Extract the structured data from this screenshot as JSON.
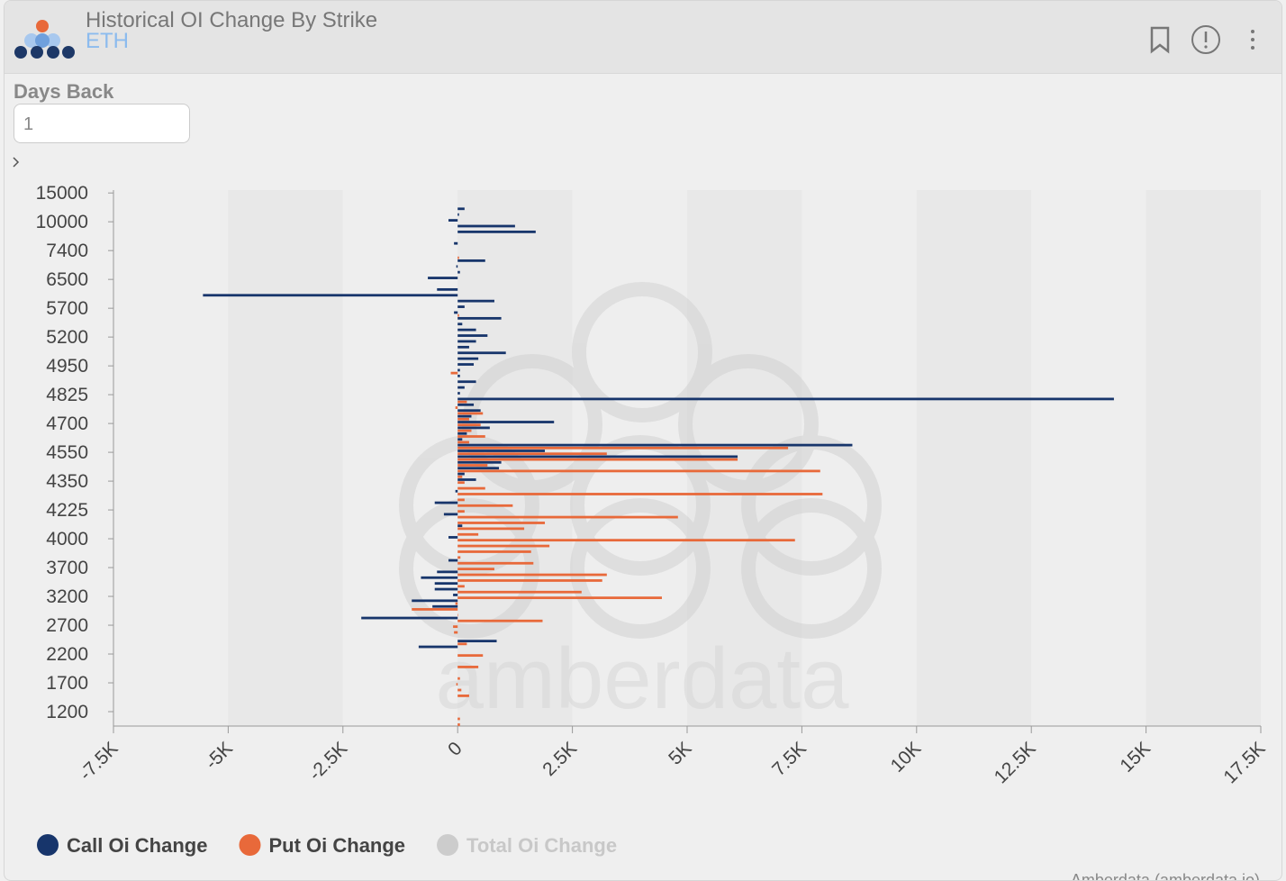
{
  "header": {
    "title": "Historical OI Change By Strike",
    "subtitle": "ETH"
  },
  "controls": {
    "days_back_label": "Days Back",
    "days_back_value": "1"
  },
  "chart_data": {
    "type": "hbar",
    "categories": [
      "15000",
      null,
      null,
      null,
      null,
      "10000",
      null,
      null,
      null,
      null,
      "7400",
      null,
      null,
      null,
      null,
      "6500",
      null,
      null,
      null,
      null,
      "5700",
      null,
      null,
      null,
      null,
      "5200",
      null,
      null,
      null,
      null,
      "4950",
      null,
      null,
      null,
      null,
      "4825",
      null,
      null,
      null,
      null,
      "4700",
      null,
      null,
      null,
      null,
      "4550",
      null,
      null,
      null,
      null,
      "4350",
      null,
      null,
      null,
      null,
      "4225",
      null,
      null,
      null,
      null,
      "4000",
      null,
      null,
      null,
      null,
      "3700",
      null,
      null,
      null,
      null,
      "3200",
      null,
      null,
      null,
      null,
      "2700",
      null,
      null,
      null,
      null,
      "2200",
      null,
      null,
      null,
      null,
      "1700",
      null,
      null,
      null,
      null,
      "1200",
      null,
      null
    ],
    "series": [
      {
        "name": "Call Oi Change",
        "color": "#17356b",
        "values": [
          0,
          0,
          0,
          150,
          30,
          -200,
          1250,
          1700,
          0,
          -80,
          0,
          0,
          600,
          -30,
          50,
          -650,
          0,
          -450,
          -5550,
          800,
          150,
          -80,
          950,
          100,
          400,
          650,
          400,
          250,
          1050,
          450,
          350,
          50,
          50,
          400,
          150,
          50,
          14300,
          350,
          500,
          300,
          2100,
          700,
          200,
          100,
          8600,
          1900,
          6100,
          950,
          900,
          150,
          400,
          0,
          -50,
          0,
          -500,
          0,
          -300,
          0,
          100,
          0,
          -200,
          0,
          0,
          0,
          -200,
          0,
          -450,
          -800,
          -500,
          -500,
          -100,
          -1000,
          -550,
          0,
          -2100,
          0,
          0,
          0,
          850,
          -850,
          0,
          0,
          0,
          0,
          0,
          0,
          0,
          0,
          0,
          0,
          0,
          0,
          0
        ]
      },
      {
        "name": "Put Oi Change",
        "color": "#e8693a",
        "values": [
          0,
          0,
          0,
          0,
          0,
          0,
          0,
          0,
          0,
          0,
          0,
          30,
          0,
          0,
          0,
          0,
          0,
          0,
          0,
          0,
          0,
          30,
          0,
          0,
          0,
          0,
          0,
          0,
          0,
          0,
          0,
          -150,
          0,
          0,
          0,
          0,
          200,
          -50,
          550,
          250,
          500,
          300,
          600,
          250,
          7200,
          3250,
          6100,
          650,
          7900,
          100,
          150,
          600,
          7950,
          150,
          1200,
          150,
          4800,
          1900,
          1450,
          450,
          7350,
          2000,
          1600,
          60,
          1650,
          800,
          3250,
          3150,
          150,
          2700,
          4450,
          -50,
          -1000,
          10,
          1850,
          -100,
          -80,
          0,
          200,
          0,
          550,
          0,
          450,
          0,
          50,
          -30,
          80,
          250,
          0,
          0,
          0,
          50,
          50
        ]
      }
    ],
    "hidden_series": [
      {
        "name": "Total Oi Change",
        "color": "#cccccc"
      }
    ],
    "xlim": [
      -7500,
      17500
    ],
    "xticks": [
      {
        "value": -7500,
        "label": "-7.5K"
      },
      {
        "value": -5000,
        "label": "-5K"
      },
      {
        "value": -2500,
        "label": "-2.5K"
      },
      0,
      {
        "value": 2500,
        "label": "2.5K"
      },
      {
        "value": 5000,
        "label": "5K"
      },
      {
        "value": 7500,
        "label": "7.5K"
      },
      {
        "value": 10000,
        "label": "10K"
      },
      {
        "value": 12500,
        "label": "12.5K"
      },
      {
        "value": 15000,
        "label": "15K"
      },
      {
        "value": 17500,
        "label": "17.5K"
      }
    ],
    "watermark": "amberdata",
    "credit": "Amberdata  (amberdata.io)"
  }
}
